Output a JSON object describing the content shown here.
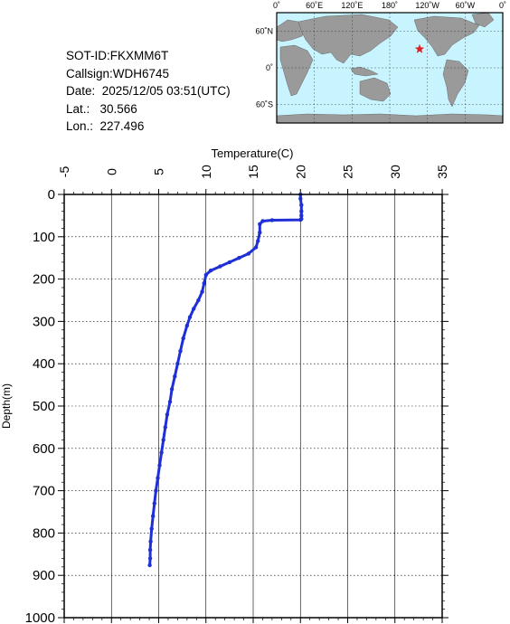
{
  "header": {
    "sot_id": "SOT-ID:FKXMM6T",
    "callsign": "Callsign:WDH6745",
    "date": "Date:  2025/12/05 03:51(UTC)",
    "lat": "Lat.:   30.566",
    "lon": "Lon.:  227.496"
  },
  "map": {
    "lon_labels": [
      "0˚",
      "60˚E",
      "120˚E",
      "180˚",
      "120˚W",
      "60˚W",
      "0˚"
    ],
    "lat_labels": [
      "60˚N",
      "0˚",
      "60˚S"
    ],
    "ocean_color": "#c8f4ff",
    "land_color": "#9a9a9a",
    "marker_color": "#e02020",
    "marker_lon": 227.496,
    "marker_lat": 30.566
  },
  "chart_data": {
    "type": "line",
    "title": "",
    "xlabel": "Temperature(C)",
    "ylabel": "Depth(m)",
    "xlim": [
      -5,
      35
    ],
    "ylim": [
      0,
      1000
    ],
    "y_inverted": true,
    "x_axis_position": "top",
    "xticks": [
      "-5",
      "0",
      "5",
      "10",
      "15",
      "20",
      "25",
      "30",
      "35"
    ],
    "yticks": [
      "0",
      "100",
      "200",
      "300",
      "400",
      "500",
      "600",
      "700",
      "800",
      "900",
      "1000"
    ],
    "grid": true,
    "color": "#1f2fd6",
    "series": [
      {
        "temperature": [
          20.0,
          20.0,
          20.1,
          20.1,
          20.1,
          20.1,
          20.0,
          17.0,
          16.0,
          15.7,
          15.7,
          15.5,
          15.3,
          14.5,
          13.5,
          12.5,
          11.5,
          10.5,
          10.0,
          9.8,
          9.6,
          9.2,
          8.7,
          8.3,
          8.0,
          7.6,
          7.3,
          7.0,
          6.7,
          6.4,
          6.2,
          5.9,
          5.7,
          5.5,
          5.3,
          5.1,
          4.9,
          4.7,
          4.55,
          4.4,
          4.25,
          4.15,
          4.1,
          4.1,
          4.05
        ],
        "depth": [
          0,
          10,
          25,
          40,
          50,
          58,
          60,
          61,
          63,
          70,
          90,
          110,
          125,
          140,
          150,
          160,
          170,
          180,
          190,
          210,
          230,
          250,
          270,
          290,
          310,
          340,
          370,
          400,
          430,
          460,
          490,
          520,
          550,
          580,
          610,
          640,
          670,
          700,
          730,
          760,
          790,
          820,
          840,
          860,
          876
        ]
      }
    ]
  }
}
